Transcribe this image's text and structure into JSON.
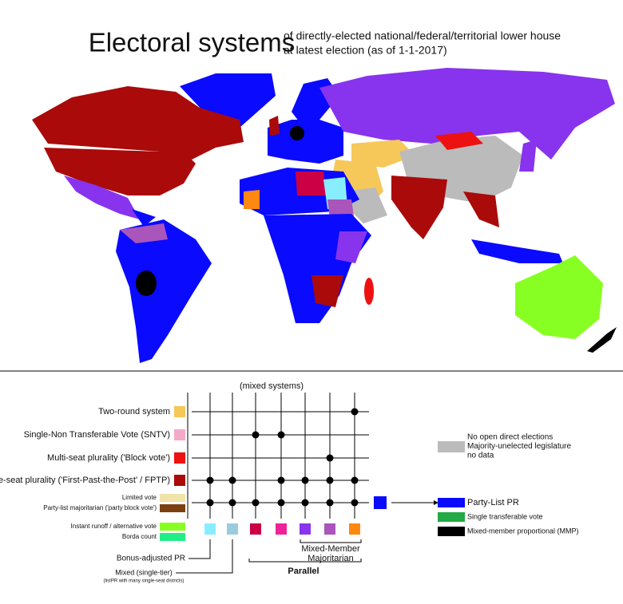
{
  "header": {
    "title": "Electoral systems",
    "subtitle": [
      "of directly-elected national/federal/territorial lower house",
      "at latest election (as of 1-1-2017)"
    ]
  },
  "legend": {
    "mixed_header": "(mixed systems)",
    "rows": [
      {
        "label": "Two-round system",
        "color": "#f6c859"
      },
      {
        "label": "Single-Non Transferable Vote (SNTV)",
        "color": "#f5a9c8"
      },
      {
        "label": "Multi-seat plurality ('Block vote')",
        "color": "#ee1111"
      },
      {
        "label": "single-seat plurality ('First-Past-the-Post' / FPTP)",
        "color": "#aa0a0a"
      }
    ],
    "minor": [
      {
        "label": "Limited vote",
        "color": "#efe3a8"
      },
      {
        "label": "Party-list majoritarian ('party block vote')",
        "color": "#7a4010"
      },
      {
        "label": "Instant runoff / alternative vote",
        "color": "#88ff22"
      },
      {
        "label": "Borda count",
        "color": "#22ee88"
      }
    ],
    "other": {
      "lines": [
        "No open direct elections",
        "Majority-unelected legislature",
        "no data"
      ],
      "color": "#bbbbbb"
    },
    "right": [
      {
        "label": "Party-List PR",
        "color": "#0a0aff"
      },
      {
        "label": "Single transferable vote",
        "color": "#22aa44"
      },
      {
        "label": "Mixed-member proportional (MMP)",
        "color": "#000000"
      }
    ],
    "mixed_colors": [
      "#88eeff",
      "#99ccdd",
      "#cc0044",
      "#ee2299",
      "#8833ee",
      "#aa55bb",
      "#ff8811"
    ],
    "bonus": "Bonus-adjusted PR",
    "single_tier": "Mixed (single-tier)",
    "single_tier_note": "(listPR with many single-seat districts)",
    "mmm": [
      "Mixed-Member",
      "Majoritarian"
    ],
    "parallel": "Parallel"
  }
}
